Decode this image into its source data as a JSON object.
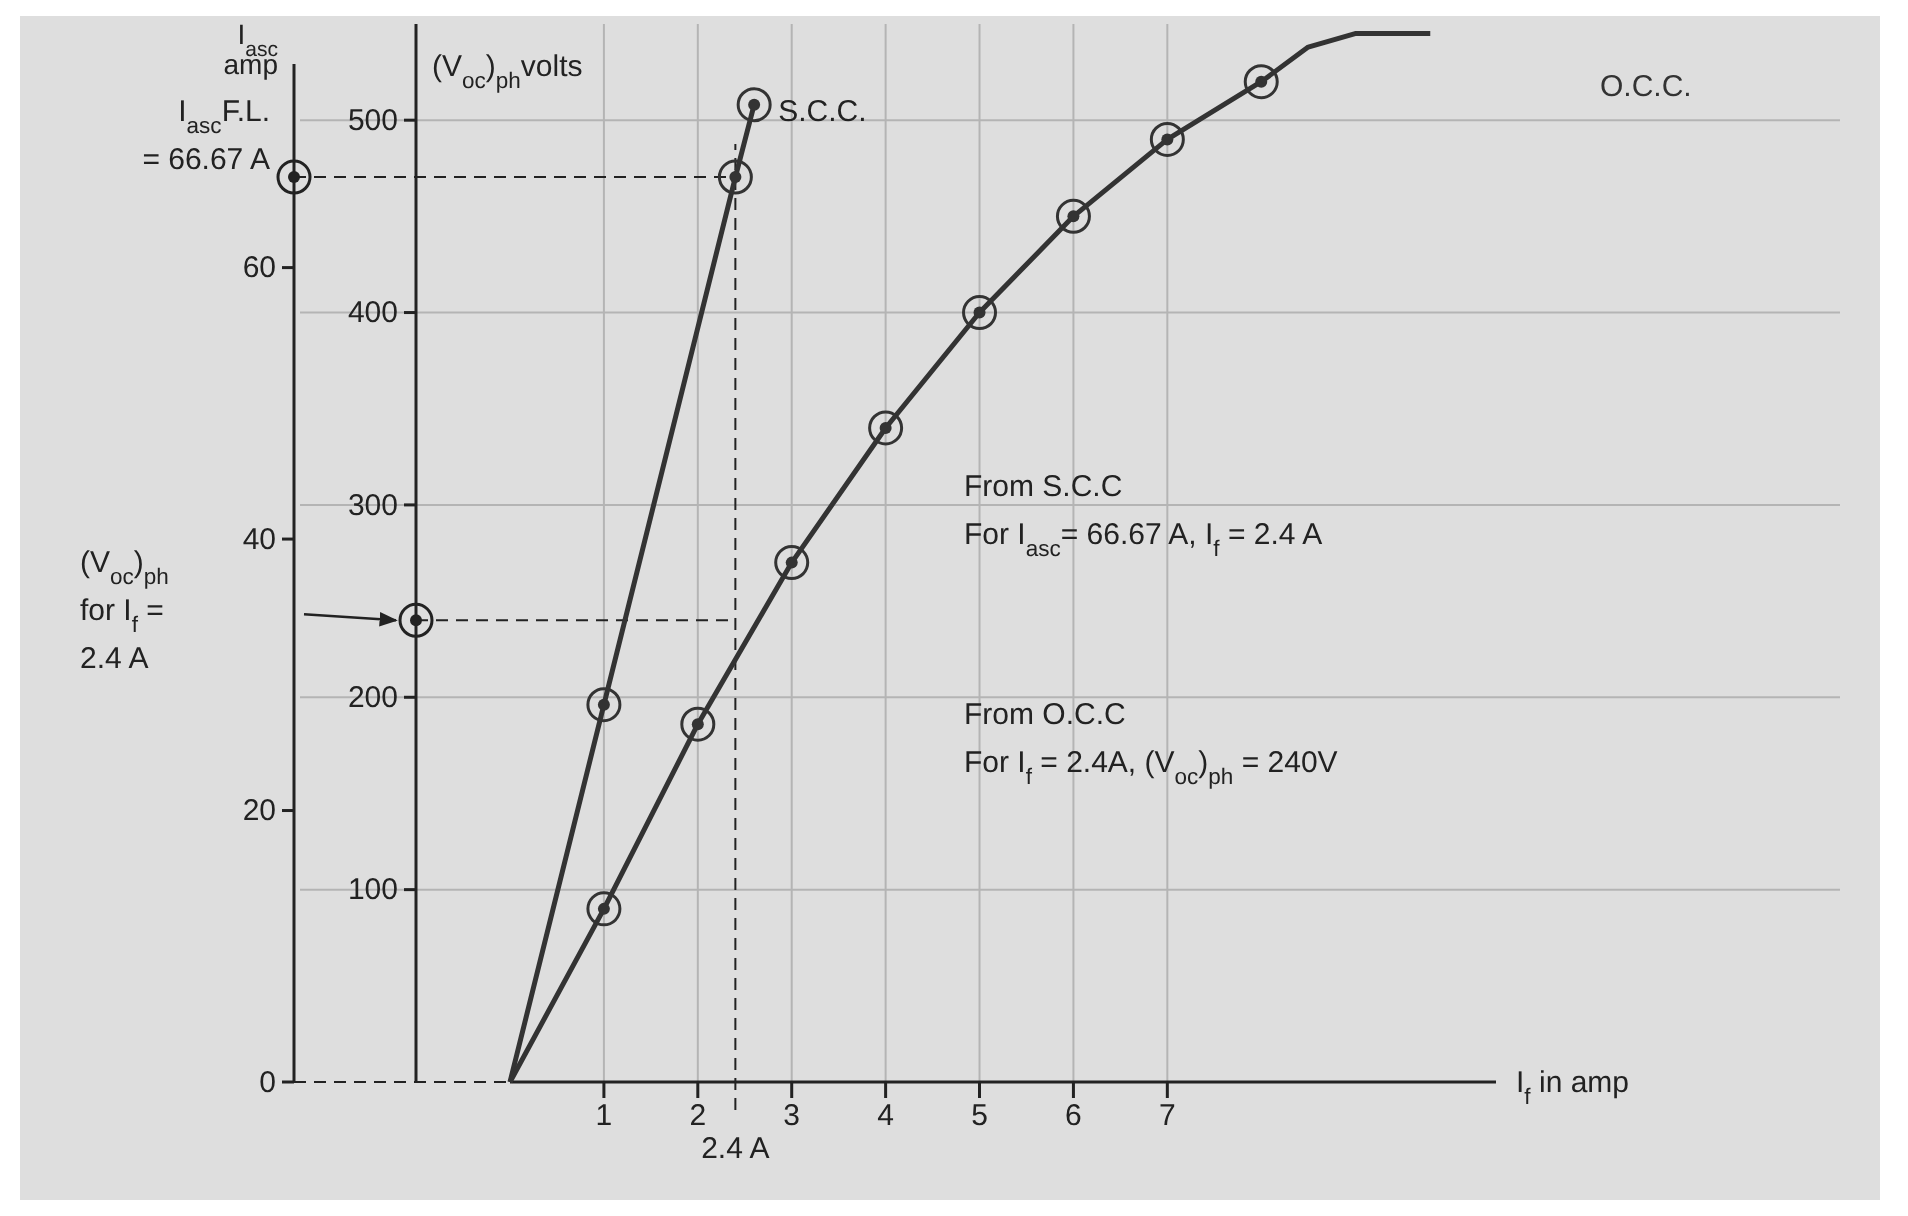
{
  "chart_data": {
    "type": "line",
    "xlabel": "I$_{f}$ in amp",
    "ylabel": "I$_{asc}$ amp",
    "y2label": "(V$_{oc}$)$_{ph}$volts",
    "xlim": [
      0,
      10.5
    ],
    "xticks": [
      1,
      2,
      3,
      4,
      5,
      6,
      7
    ],
    "ylim": [
      0,
      75
    ],
    "yticks": [
      0,
      20,
      40,
      60
    ],
    "y2lim": [
      0,
      550
    ],
    "y2ticks": [
      100,
      200,
      300,
      400,
      500
    ],
    "grid": true,
    "marker": "circle",
    "line_style": "solid",
    "series": [
      {
        "name": "S.C.C.",
        "color": "#333333",
        "axis": "y",
        "x": [
          0,
          1,
          2.4,
          2.6
        ],
        "values": [
          0,
          27.8,
          66.67,
          72
        ]
      },
      {
        "name": "O.C.C.",
        "color": "#333333",
        "axis": "y2",
        "x": [
          0,
          1,
          2,
          3,
          4,
          5,
          6,
          7,
          8
        ],
        "values": [
          0,
          90,
          186,
          270,
          340,
          400,
          450,
          490,
          520
        ]
      },
      {
        "color": "#333333",
        "axis": "y2",
        "marker": "none",
        "x": [
          8,
          8.5,
          9,
          9.8
        ],
        "values": [
          520,
          538,
          545,
          545
        ]
      }
    ],
    "ref_lines": [
      {
        "axis": "x",
        "value": 2.4,
        "label": "2.4 A",
        "line_style": "dashed"
      },
      {
        "axis": "y",
        "value": 66.67,
        "label": "I$_{asc}$F.L.\n= 66.67 A",
        "line_style": "dashed"
      },
      {
        "axis": "y2",
        "value": 240,
        "line_style": "dashed"
      }
    ],
    "annotations": [
      "From S.C.C\nFor I$_{asc}$= 66.67 A, I$_{f}$ = 2.4 A",
      "From O.C.C\nFor I$_{f}$ = 2.4A, (V$_{oc}$)$_{ph}$ = 240V",
      "(V$_{oc}$)$_{ph}$\nfor I$_{f}$ =\n2.4 A"
    ]
  }
}
